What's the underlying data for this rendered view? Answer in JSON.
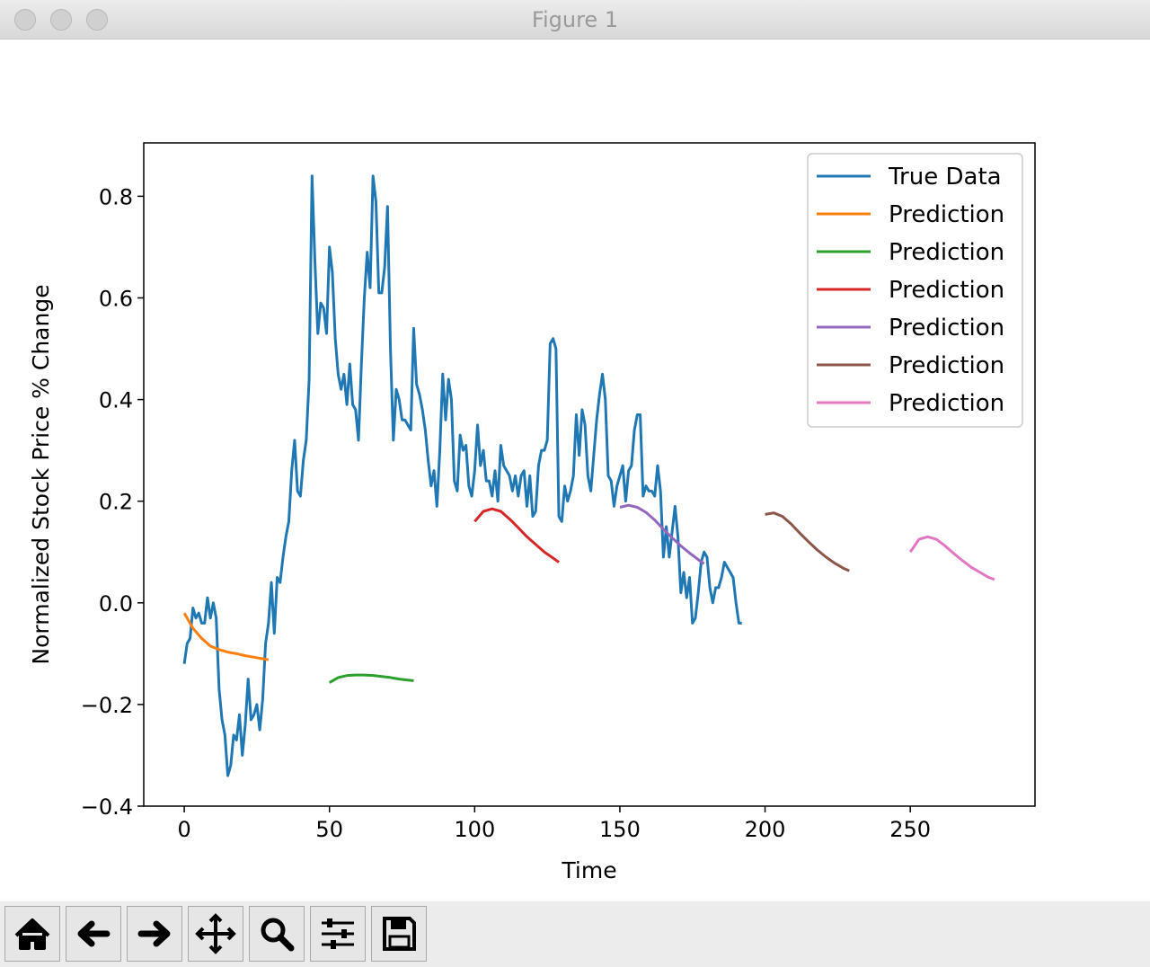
{
  "window": {
    "title": "Figure 1"
  },
  "chart_data": {
    "type": "line",
    "xlabel": "Time",
    "ylabel": "Normalized Stock Price % Change",
    "xlim": [
      -13.95,
      292.95
    ],
    "ylim": [
      -0.4,
      0.905
    ],
    "xticks": [
      0,
      50,
      100,
      150,
      200,
      250
    ],
    "yticks": [
      {
        "value": -0.4,
        "label": "−0.4"
      },
      {
        "value": -0.2,
        "label": "−0.2"
      },
      {
        "value": 0,
        "label": "0.0"
      },
      0.2,
      0.4,
      0.6,
      0.8
    ],
    "legend": "upper right",
    "series": [
      {
        "name": "True Data",
        "color": "#1f77b4",
        "x": [
          0,
          1,
          2,
          3,
          4,
          5,
          6,
          7,
          8,
          9,
          10,
          11,
          12,
          13,
          14,
          15,
          16,
          17,
          18,
          19,
          20,
          21,
          22,
          23,
          24,
          25,
          26,
          27,
          28,
          29,
          30,
          31,
          32,
          33,
          34,
          35,
          36,
          37,
          38,
          39,
          40,
          41,
          42,
          43,
          44,
          45,
          46,
          47,
          48,
          49,
          50,
          51,
          52,
          53,
          54,
          55,
          56,
          57,
          58,
          59,
          60,
          61,
          62,
          63,
          64,
          65,
          66,
          67,
          68,
          69,
          70,
          71,
          72,
          73,
          74,
          75,
          76,
          77,
          78,
          79,
          80,
          81,
          82,
          83,
          84,
          85,
          86,
          87,
          88,
          89,
          90,
          91,
          92,
          93,
          94,
          95,
          96,
          97,
          98,
          99,
          100,
          101,
          102,
          103,
          104,
          105,
          106,
          107,
          108,
          109,
          110,
          111,
          112,
          113,
          114,
          115,
          116,
          117,
          118,
          119,
          120,
          121,
          122,
          123,
          124,
          125,
          126,
          127,
          128,
          129,
          130,
          131,
          132,
          133,
          134,
          135,
          136,
          137,
          138,
          139,
          140,
          141,
          142,
          143,
          144,
          145,
          146,
          147,
          148,
          149,
          150,
          151,
          152,
          153,
          154,
          155,
          156,
          157,
          158,
          159,
          160,
          161,
          162,
          163,
          164,
          165,
          166,
          167,
          168,
          169,
          170,
          171,
          172,
          173,
          174,
          175,
          176,
          177,
          178,
          179,
          180,
          181,
          182,
          183,
          184,
          185,
          186,
          187,
          188,
          189,
          190,
          191,
          192
        ],
        "values": [
          -0.12,
          -0.08,
          -0.07,
          -0.01,
          -0.03,
          -0.02,
          -0.04,
          -0.04,
          0.01,
          -0.03,
          0.0,
          -0.03,
          -0.17,
          -0.23,
          -0.26,
          -0.34,
          -0.32,
          -0.26,
          -0.27,
          -0.22,
          -0.3,
          -0.24,
          -0.15,
          -0.23,
          -0.22,
          -0.2,
          -0.25,
          -0.19,
          -0.08,
          -0.04,
          0.04,
          -0.06,
          0.05,
          0.04,
          0.09,
          0.13,
          0.16,
          0.26,
          0.32,
          0.22,
          0.21,
          0.28,
          0.32,
          0.44,
          0.84,
          0.67,
          0.53,
          0.59,
          0.58,
          0.53,
          0.7,
          0.65,
          0.52,
          0.45,
          0.42,
          0.45,
          0.39,
          0.47,
          0.39,
          0.38,
          0.32,
          0.47,
          0.6,
          0.69,
          0.62,
          0.84,
          0.79,
          0.61,
          0.61,
          0.66,
          0.78,
          0.5,
          0.32,
          0.42,
          0.4,
          0.36,
          0.36,
          0.35,
          0.34,
          0.54,
          0.43,
          0.41,
          0.38,
          0.34,
          0.28,
          0.23,
          0.26,
          0.19,
          0.3,
          0.45,
          0.36,
          0.44,
          0.4,
          0.24,
          0.22,
          0.33,
          0.3,
          0.31,
          0.23,
          0.21,
          0.26,
          0.35,
          0.27,
          0.3,
          0.24,
          0.24,
          0.21,
          0.26,
          0.2,
          0.31,
          0.27,
          0.26,
          0.25,
          0.22,
          0.25,
          0.21,
          0.25,
          0.26,
          0.19,
          0.25,
          0.17,
          0.18,
          0.27,
          0.3,
          0.3,
          0.32,
          0.51,
          0.52,
          0.5,
          0.17,
          0.16,
          0.23,
          0.2,
          0.22,
          0.25,
          0.37,
          0.29,
          0.38,
          0.35,
          0.25,
          0.22,
          0.29,
          0.36,
          0.41,
          0.45,
          0.4,
          0.25,
          0.24,
          0.19,
          0.23,
          0.25,
          0.27,
          0.2,
          0.26,
          0.27,
          0.34,
          0.37,
          0.37,
          0.21,
          0.23,
          0.22,
          0.22,
          0.21,
          0.27,
          0.22,
          0.09,
          0.15,
          0.09,
          0.14,
          0.19,
          0.13,
          0.02,
          0.06,
          0.01,
          0.05,
          -0.04,
          -0.03,
          0.02,
          0.08,
          0.1,
          0.09,
          0.03,
          0.0,
          0.03,
          0.03,
          0.05,
          0.08,
          0.07,
          0.06,
          0.05,
          0.0,
          -0.04,
          -0.04
        ]
      },
      {
        "name": "Prediction",
        "color": "#ff7f0e",
        "x": [
          0,
          3,
          6,
          9,
          12,
          15,
          18,
          21,
          24,
          27,
          29
        ],
        "values": [
          -0.02,
          -0.05,
          -0.07,
          -0.085,
          -0.092,
          -0.097,
          -0.1,
          -0.104,
          -0.107,
          -0.11,
          -0.112
        ]
      },
      {
        "name": "Prediction",
        "color": "#2ca02c",
        "x": [
          50,
          53,
          56,
          59,
          62,
          65,
          68,
          71,
          74,
          77,
          79
        ],
        "values": [
          -0.157,
          -0.147,
          -0.143,
          -0.142,
          -0.142,
          -0.143,
          -0.145,
          -0.147,
          -0.15,
          -0.152,
          -0.153
        ]
      },
      {
        "name": "Prediction",
        "color": "#d62728",
        "x": [
          100,
          103,
          106,
          109,
          112,
          115,
          118,
          121,
          124,
          127,
          129
        ],
        "values": [
          0.16,
          0.18,
          0.185,
          0.18,
          0.165,
          0.148,
          0.13,
          0.115,
          0.1,
          0.088,
          0.08
        ]
      },
      {
        "name": "Prediction",
        "color": "#9467bd",
        "x": [
          150,
          153,
          156,
          159,
          162,
          165,
          168,
          171,
          174,
          177,
          179
        ],
        "values": [
          0.188,
          0.192,
          0.188,
          0.178,
          0.163,
          0.145,
          0.128,
          0.112,
          0.098,
          0.085,
          0.077
        ]
      },
      {
        "name": "Prediction",
        "color": "#8c564b",
        "x": [
          200,
          203,
          206,
          209,
          212,
          215,
          218,
          221,
          224,
          227,
          229
        ],
        "values": [
          0.174,
          0.177,
          0.17,
          0.155,
          0.137,
          0.12,
          0.104,
          0.09,
          0.078,
          0.068,
          0.063
        ]
      },
      {
        "name": "Prediction",
        "color": "#e377c2",
        "x": [
          250,
          253,
          256,
          259,
          262,
          265,
          268,
          271,
          274,
          277,
          279
        ],
        "values": [
          0.1,
          0.125,
          0.13,
          0.125,
          0.112,
          0.097,
          0.083,
          0.07,
          0.06,
          0.05,
          0.046
        ]
      }
    ]
  }
}
